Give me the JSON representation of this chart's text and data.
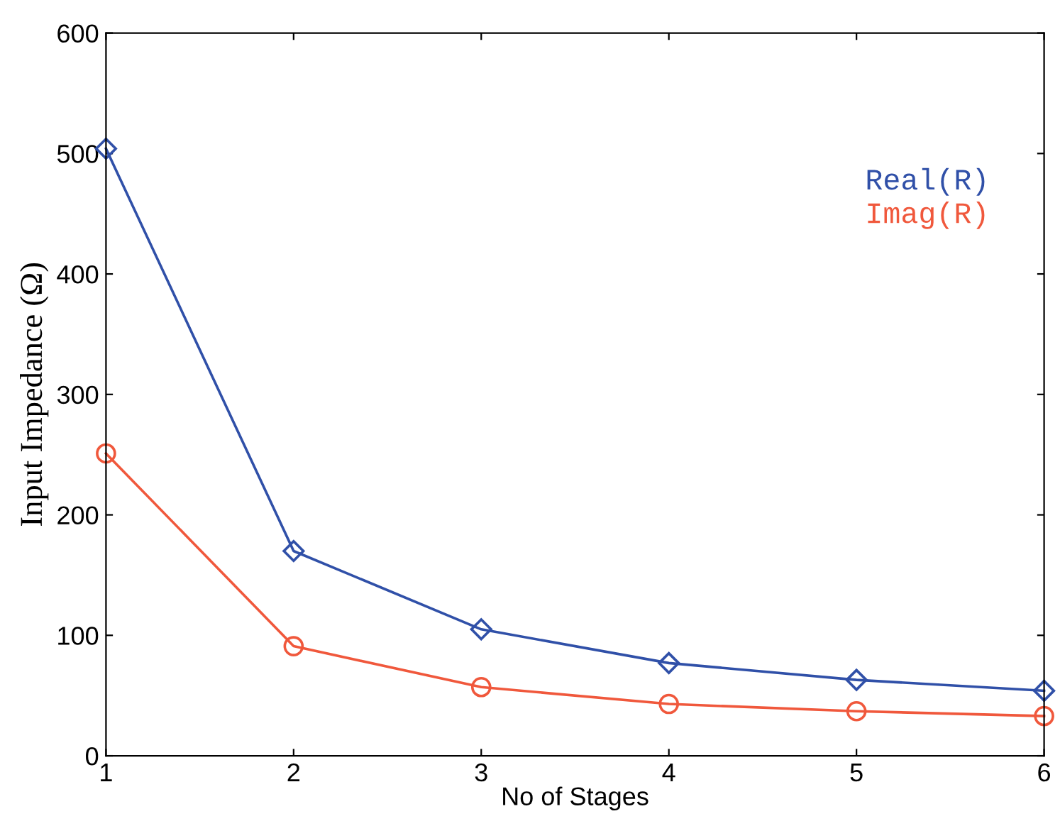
{
  "chart_data": {
    "type": "line",
    "xlabel": "No of Stages",
    "ylabel": "Input Impedance (Ω)",
    "x": [
      1,
      2,
      3,
      4,
      5,
      6
    ],
    "series": [
      {
        "name": "Real(R)",
        "color": "#3050a8",
        "values": [
          504,
          170,
          105,
          77,
          63,
          54
        ],
        "marker": "diamond"
      },
      {
        "name": "Imag(R)",
        "color": "#f0583c",
        "values": [
          251,
          91,
          57,
          43,
          37,
          33
        ],
        "marker": "circle"
      }
    ],
    "xlim": [
      1,
      6
    ],
    "xticks": [
      1,
      2,
      3,
      4,
      5,
      6
    ],
    "ylim": [
      0,
      600
    ],
    "yticks": [
      0,
      100,
      200,
      300,
      400,
      500,
      600
    ],
    "grid": false,
    "legend": "top right",
    "line_style": "solid"
  }
}
